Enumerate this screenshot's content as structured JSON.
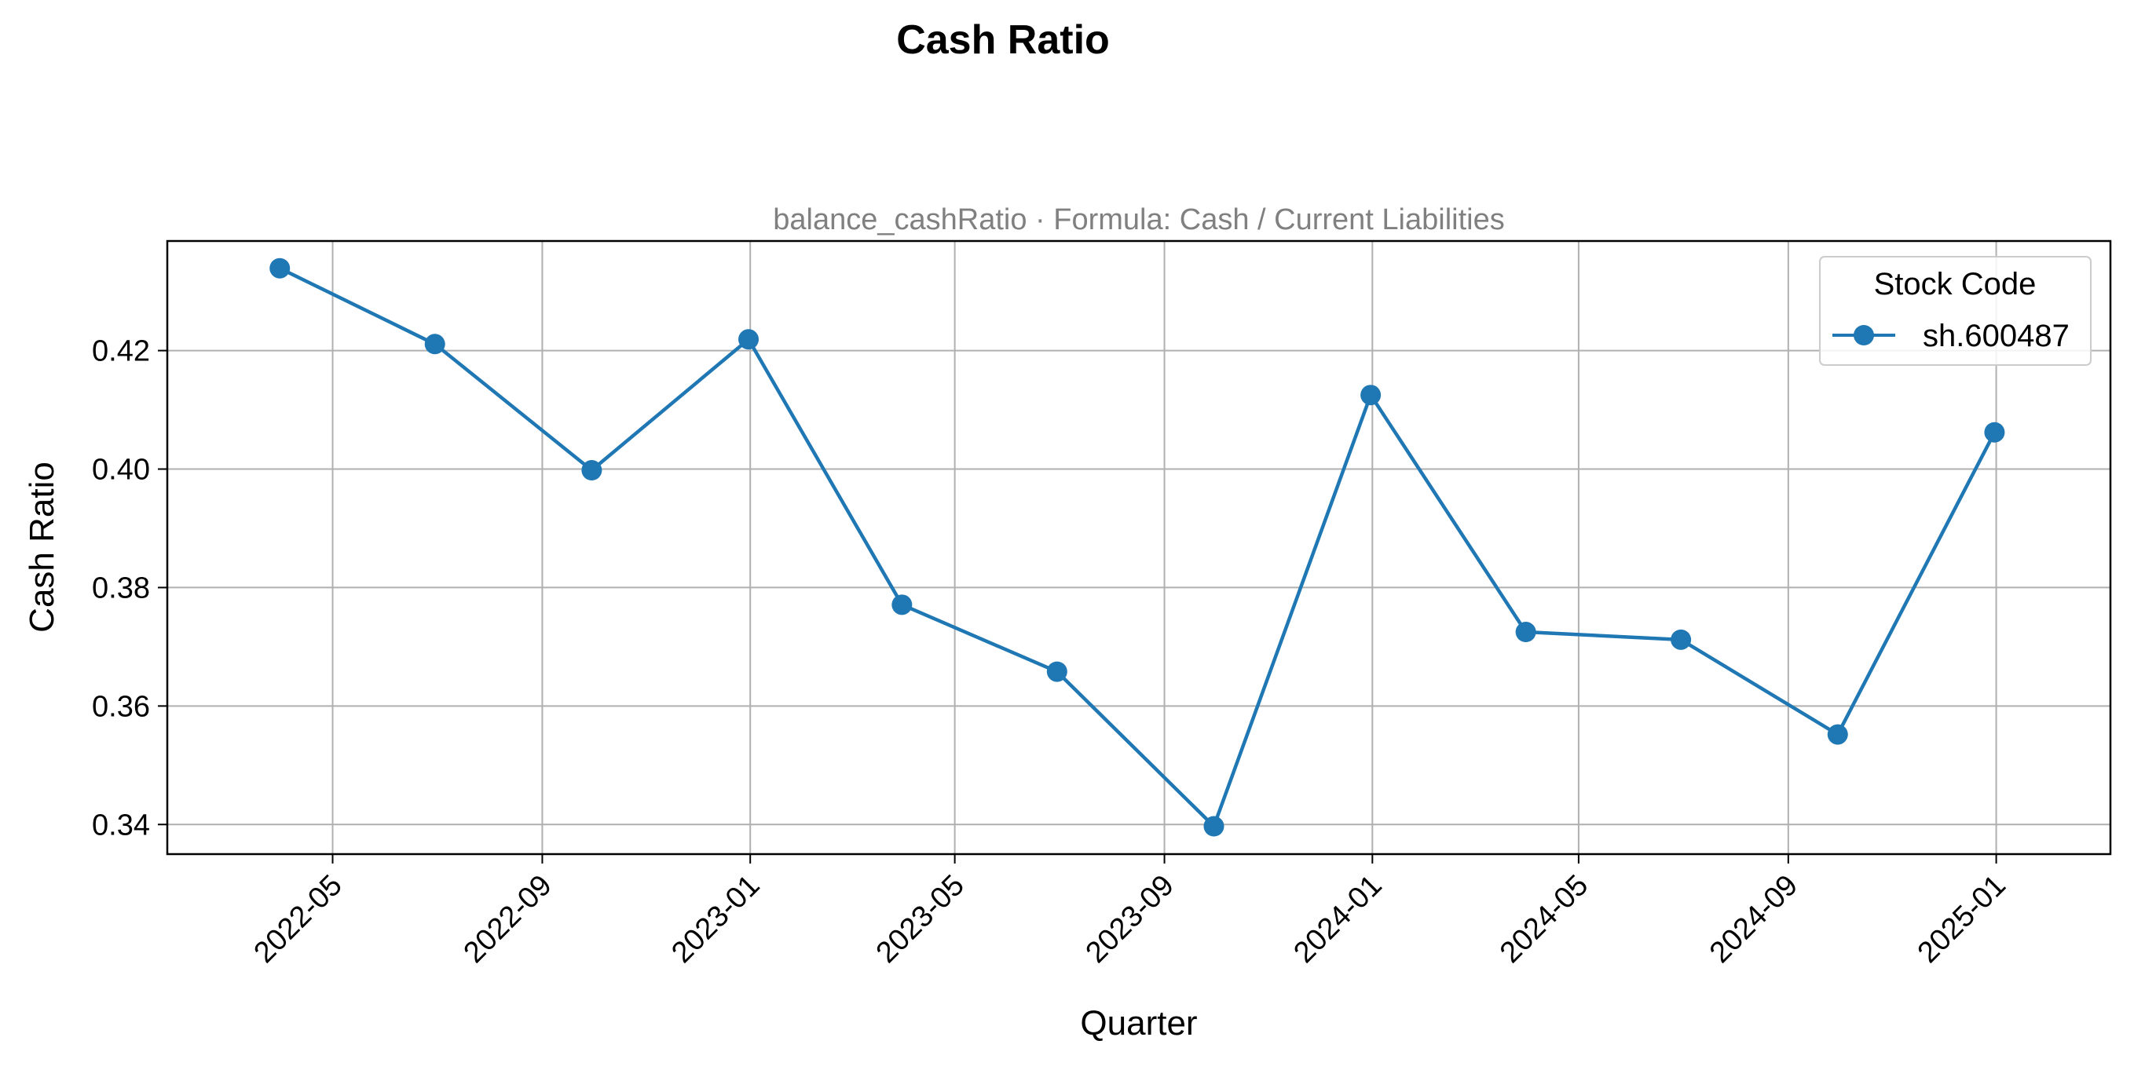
{
  "chart_data": {
    "type": "line",
    "title": "Cash Ratio",
    "subtitle": "balance_cashRatio · Formula: Cash / Current Liabilities",
    "xlabel": "Quarter",
    "ylabel": "Cash Ratio",
    "x_tick_labels": [
      "2022-05",
      "2022-09",
      "2023-01",
      "2023-05",
      "2023-09",
      "2024-01",
      "2024-05",
      "2024-09",
      "2025-01"
    ],
    "y_tick_labels": [
      "0.34",
      "0.36",
      "0.38",
      "0.40",
      "0.42"
    ],
    "y_ticks": [
      0.34,
      0.36,
      0.38,
      0.4,
      0.42
    ],
    "ylim": [
      0.335,
      0.4385
    ],
    "xlim": [
      "2022-01-24",
      "2025-03-09"
    ],
    "grid": true,
    "legend": {
      "title": "Stock Code",
      "placement": "top-right"
    },
    "series": [
      {
        "name": "sh.600487",
        "color": "#1f77b4",
        "marker": "circle",
        "x": [
          "2022-03-31",
          "2022-06-30",
          "2022-09-30",
          "2022-12-31",
          "2023-03-31",
          "2023-06-30",
          "2023-09-30",
          "2023-12-31",
          "2024-03-31",
          "2024-06-30",
          "2024-09-30",
          "2024-12-31"
        ],
        "values": [
          0.4339,
          0.4211,
          0.3998,
          0.4219,
          0.3771,
          0.3658,
          0.3397,
          0.4125,
          0.3725,
          0.3712,
          0.3552,
          0.4062
        ]
      }
    ]
  }
}
